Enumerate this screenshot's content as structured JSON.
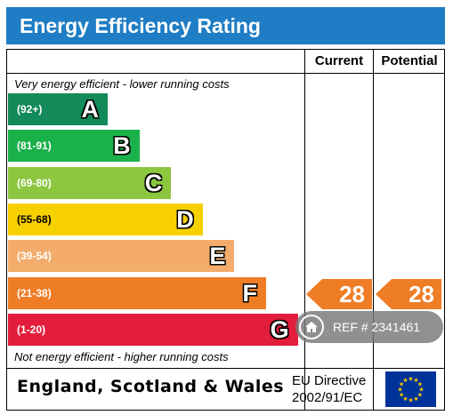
{
  "title": "Energy Efficiency Rating",
  "columns": {
    "current": "Current",
    "potential": "Potential"
  },
  "notes": {
    "top": "Very energy efficient - lower running costs",
    "bottom": "Not energy efficient - higher running costs"
  },
  "chart_data": {
    "type": "bar",
    "title": "Energy Efficiency Rating",
    "bands": [
      {
        "range": "(92+)",
        "letter": "A",
        "color": "#138a5a"
      },
      {
        "range": "(81-91)",
        "letter": "B",
        "color": "#1ab14b"
      },
      {
        "range": "(69-80)",
        "letter": "C",
        "color": "#8dc63f"
      },
      {
        "range": "(55-68)",
        "letter": "D",
        "color": "#f7d000"
      },
      {
        "range": "(39-54)",
        "letter": "E",
        "color": "#f3ac6c"
      },
      {
        "range": "(21-38)",
        "letter": "F",
        "color": "#ef7d26"
      },
      {
        "range": "(1-20)",
        "letter": "G",
        "color": "#e31d3c"
      }
    ],
    "current": {
      "value": "28",
      "band": "F",
      "color": "#ef7d26"
    },
    "potential": {
      "value": "28",
      "band": "F",
      "color": "#ef7d26"
    }
  },
  "footer": {
    "region": "England, Scotland & Wales",
    "directive_line1": "EU Directive",
    "directive_line2": "2002/91/EC",
    "flag_icon": "eu-flag-icon"
  },
  "overlay": {
    "ref_text": "REF # 2341461",
    "icon": "home-icon"
  }
}
